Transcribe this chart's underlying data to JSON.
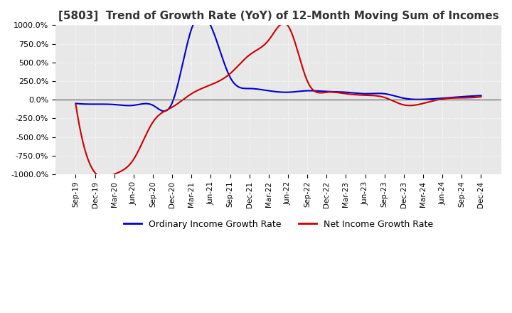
{
  "title": "[5803]  Trend of Growth Rate (YoY) of 12-Month Moving Sum of Incomes",
  "title_fontsize": 11,
  "ylim": [
    -1000,
    1000
  ],
  "yticks": [
    -1000,
    -750,
    -500,
    -250,
    0,
    250,
    500,
    750,
    1000
  ],
  "yticklabels": [
    "-1000.0%",
    "-750.0%",
    "-500.0%",
    "-250.0%",
    "0.0%",
    "250.0%",
    "500.0%",
    "750.0%",
    "1000.0%"
  ],
  "background_color": "#ffffff",
  "plot_bg_color": "#e8e8e8",
  "grid_color": "#ffffff",
  "legend": [
    "Ordinary Income Growth Rate",
    "Net Income Growth Rate"
  ],
  "line_colors": [
    "#0000cc",
    "#cc0000"
  ],
  "x_labels": [
    "Sep-19",
    "Dec-19",
    "Mar-20",
    "Jun-20",
    "Sep-20",
    "Dec-20",
    "Mar-21",
    "Jun-21",
    "Sep-21",
    "Dec-21",
    "Mar-22",
    "Jun-22",
    "Sep-22",
    "Dec-22",
    "Mar-23",
    "Jun-23",
    "Sep-23",
    "Dec-23",
    "Mar-24",
    "Jun-24",
    "Sep-24",
    "Dec-24"
  ],
  "ordinary_income": [
    -50,
    -60,
    -65,
    -75,
    -75,
    -40,
    950,
    990,
    300,
    150,
    120,
    100,
    120,
    110,
    100,
    80,
    80,
    20,
    5,
    20,
    40,
    55
  ],
  "net_income": [
    -60,
    -980,
    -1000,
    -800,
    -300,
    -100,
    80,
    200,
    350,
    600,
    800,
    990,
    250,
    100,
    80,
    60,
    30,
    -70,
    -50,
    10,
    25,
    40
  ]
}
